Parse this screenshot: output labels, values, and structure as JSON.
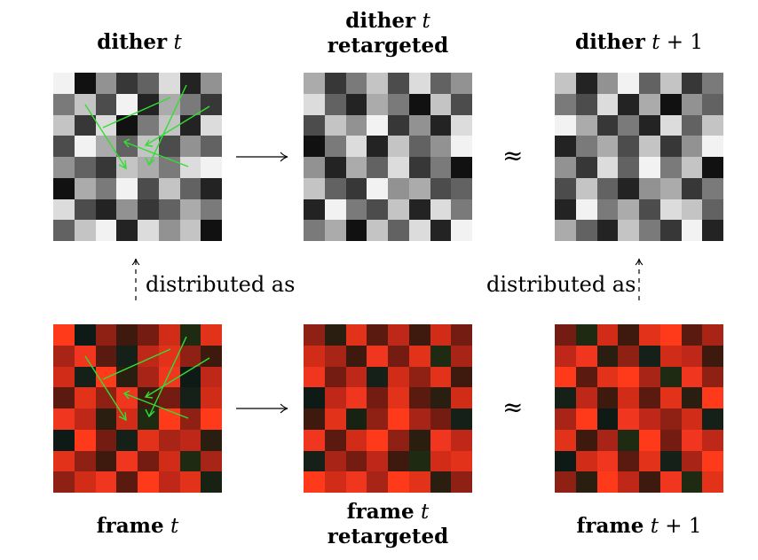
{
  "labels": {
    "dither_t": {
      "word": "dither",
      "var": "t",
      "suffix": ""
    },
    "dither_t_retargeted": {
      "word": "dither",
      "var": "t",
      "line2": "retargeted"
    },
    "dither_t1": {
      "word": "dither",
      "var": "t",
      "suffix": "+ 1"
    },
    "frame_t": {
      "word": "frame",
      "var": "t",
      "suffix": ""
    },
    "frame_t_retargeted": {
      "word": "frame",
      "var": "t",
      "line2": "retargeted"
    },
    "frame_t1": {
      "word": "frame",
      "var": "t",
      "suffix": "+ 1"
    }
  },
  "relations": {
    "approx": "≈",
    "distributed_left": "distributed as",
    "distributed_right": "distributed as"
  },
  "palettes": {
    "gray": [
      "#f2f2f2",
      "#dcdcdc",
      "#c4c4c4",
      "#ababab",
      "#929292",
      "#7a7a7a",
      "#626262",
      "#4c4c4c",
      "#373737",
      "#232323",
      "#111111"
    ],
    "red": [
      "#ff3a1a",
      "#f0361e",
      "#e3321a",
      "#d12c18",
      "#bf2818",
      "#a82416",
      "#8f2014",
      "#741c12",
      "#5a1a10",
      "#3e1a0e",
      "#2a1e10",
      "#1e2a12",
      "#142018",
      "#0e1a16",
      "#182212"
    ],
    "arrow_color": "#33dd33"
  },
  "grids": {
    "dither_t": [
      [
        0,
        10,
        4,
        8,
        6,
        1,
        9,
        4
      ],
      [
        5,
        2,
        7,
        0,
        9,
        3,
        5,
        8
      ],
      [
        2,
        8,
        1,
        10,
        5,
        2,
        9,
        1
      ],
      [
        7,
        0,
        3,
        6,
        2,
        7,
        4,
        6
      ],
      [
        4,
        6,
        8,
        2,
        3,
        5,
        1,
        0
      ],
      [
        10,
        3,
        5,
        0,
        7,
        2,
        6,
        9
      ],
      [
        1,
        7,
        9,
        4,
        8,
        6,
        3,
        5
      ],
      [
        6,
        2,
        0,
        9,
        1,
        4,
        2,
        10
      ]
    ],
    "dither_t_retargeted": [
      [
        3,
        8,
        5,
        2,
        7,
        1,
        6,
        4
      ],
      [
        1,
        6,
        9,
        3,
        5,
        10,
        2,
        7
      ],
      [
        7,
        2,
        4,
        0,
        8,
        4,
        9,
        1
      ],
      [
        10,
        5,
        1,
        9,
        2,
        6,
        4,
        0
      ],
      [
        4,
        9,
        3,
        6,
        1,
        8,
        5,
        10
      ],
      [
        2,
        6,
        8,
        0,
        4,
        3,
        7,
        6
      ],
      [
        9,
        0,
        5,
        7,
        2,
        9,
        1,
        5
      ],
      [
        5,
        3,
        10,
        2,
        6,
        1,
        9,
        0
      ]
    ],
    "dither_t1": [
      [
        2,
        9,
        4,
        0,
        6,
        2,
        8,
        5
      ],
      [
        5,
        7,
        1,
        9,
        3,
        10,
        4,
        6
      ],
      [
        0,
        3,
        8,
        5,
        9,
        1,
        6,
        2
      ],
      [
        9,
        5,
        3,
        7,
        2,
        8,
        4,
        0
      ],
      [
        4,
        8,
        1,
        6,
        0,
        5,
        2,
        10
      ],
      [
        7,
        2,
        6,
        9,
        4,
        3,
        8,
        5
      ],
      [
        9,
        0,
        5,
        3,
        7,
        1,
        2,
        6
      ],
      [
        3,
        6,
        9,
        2,
        5,
        8,
        0,
        9
      ]
    ],
    "frame_t": [
      [
        0,
        13,
        6,
        9,
        7,
        3,
        11,
        2
      ],
      [
        5,
        1,
        8,
        12,
        4,
        2,
        6,
        9
      ],
      [
        3,
        12,
        0,
        10,
        5,
        1,
        13,
        4
      ],
      [
        8,
        2,
        6,
        1,
        9,
        7,
        12,
        3
      ],
      [
        1,
        4,
        10,
        3,
        11,
        0,
        6,
        0
      ],
      [
        13,
        0,
        7,
        12,
        2,
        5,
        4,
        10
      ],
      [
        2,
        6,
        9,
        1,
        7,
        3,
        11,
        5
      ],
      [
        6,
        3,
        1,
        8,
        0,
        4,
        2,
        14
      ]
    ],
    "frame_t_retargeted": [
      [
        6,
        10,
        2,
        8,
        4,
        9,
        3,
        7
      ],
      [
        3,
        5,
        9,
        1,
        7,
        2,
        11,
        5
      ],
      [
        1,
        7,
        4,
        12,
        3,
        6,
        2,
        9
      ],
      [
        13,
        4,
        1,
        7,
        2,
        8,
        10,
        3
      ],
      [
        9,
        2,
        14,
        6,
        0,
        5,
        7,
        12
      ],
      [
        1,
        8,
        3,
        0,
        6,
        10,
        1,
        4
      ],
      [
        12,
        5,
        7,
        4,
        9,
        11,
        3,
        2
      ],
      [
        0,
        3,
        1,
        5,
        0,
        2,
        10,
        6
      ]
    ],
    "frame_t1": [
      [
        7,
        11,
        3,
        9,
        2,
        0,
        8,
        5
      ],
      [
        4,
        1,
        10,
        6,
        12,
        3,
        4,
        9
      ],
      [
        0,
        8,
        2,
        0,
        5,
        11,
        1,
        6
      ],
      [
        12,
        4,
        9,
        3,
        8,
        2,
        10,
        0
      ],
      [
        5,
        0,
        13,
        1,
        4,
        6,
        3,
        12
      ],
      [
        2,
        9,
        5,
        11,
        0,
        7,
        1,
        4
      ],
      [
        13,
        3,
        1,
        8,
        2,
        12,
        5,
        0
      ],
      [
        6,
        10,
        0,
        4,
        9,
        1,
        11,
        2
      ]
    ]
  }
}
